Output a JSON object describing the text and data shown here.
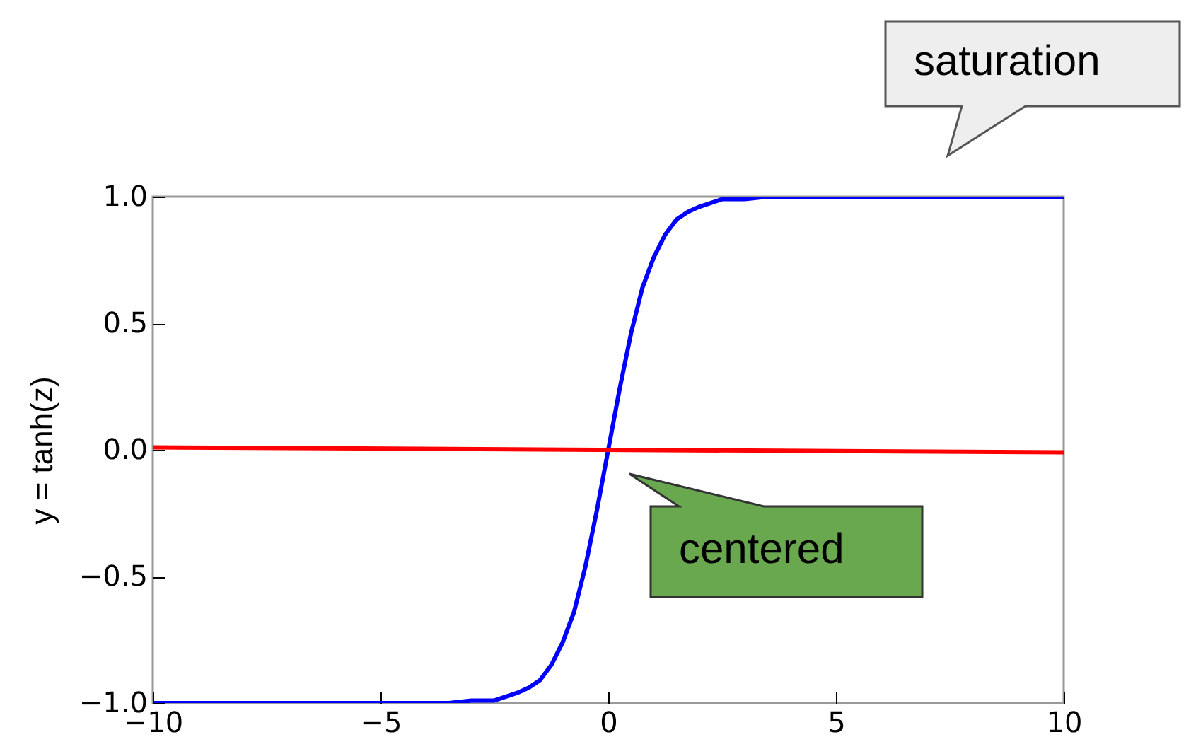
{
  "chart_data": {
    "type": "line",
    "ylabel": "y = tanh(z)",
    "x": [
      -10,
      -5,
      -4,
      -3.5,
      -3,
      -2.5,
      -2,
      -1.75,
      -1.5,
      -1.25,
      -1,
      -0.75,
      -0.5,
      -0.25,
      0,
      0.25,
      0.5,
      0.75,
      1,
      1.25,
      1.5,
      1.75,
      2,
      2.5,
      3,
      3.5,
      4,
      5,
      10
    ],
    "series": [
      {
        "color": "#0000ff",
        "values": [
          -1,
          -1,
          -1,
          -1,
          -0.99,
          -0.99,
          -0.96,
          -0.94,
          -0.91,
          -0.85,
          -0.76,
          -0.64,
          -0.46,
          -0.24,
          0,
          0.24,
          0.46,
          0.64,
          0.76,
          0.85,
          0.91,
          0.94,
          0.96,
          0.99,
          0.99,
          1,
          1,
          1,
          1
        ]
      },
      {
        "color": "#ff0000",
        "x": [
          -10,
          10
        ],
        "values": [
          0.01,
          -0.01
        ]
      }
    ],
    "xlim": [
      -10,
      10
    ],
    "xticks": [
      {
        "value": -10,
        "label": "−10"
      },
      {
        "value": -5,
        "label": "−5"
      },
      0,
      5,
      10
    ],
    "ylim": [
      -1,
      1
    ],
    "yticks": [
      {
        "value": -1,
        "label": "−1.0"
      },
      {
        "value": -0.5,
        "label": "−0.5"
      },
      {
        "value": 0,
        "label": "0.0"
      },
      {
        "value": 0.5,
        "label": "0.5"
      },
      {
        "value": 1,
        "label": "1.0"
      }
    ],
    "annotations": [
      "saturation",
      "centered"
    ]
  }
}
